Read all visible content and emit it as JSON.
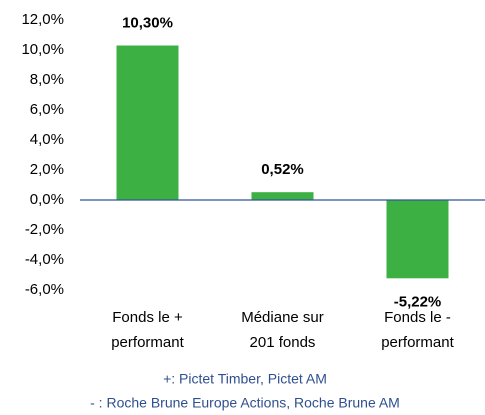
{
  "chart_data": {
    "type": "bar",
    "categories": [
      [
        "Fonds le +",
        "performant"
      ],
      [
        "Médiane sur",
        "201 fonds"
      ],
      [
        "Fonds le -",
        "performant"
      ]
    ],
    "values": [
      10.3,
      0.52,
      -5.22
    ],
    "value_labels": [
      "10,30%",
      "0,52%",
      "-5,22%"
    ],
    "color": "#3cb043",
    "ylim": [
      -6,
      12
    ],
    "yticks": [
      {
        "value": -6,
        "label": "-6,0%"
      },
      {
        "value": -4,
        "label": "-4,0%"
      },
      {
        "value": -2,
        "label": "-2,0%"
      },
      {
        "value": 0,
        "label": "0,0%"
      },
      {
        "value": 2,
        "label": "2,0%"
      },
      {
        "value": 4,
        "label": "4,0%"
      },
      {
        "value": 6,
        "label": "6,0%"
      },
      {
        "value": 8,
        "label": "8,0%"
      },
      {
        "value": 10,
        "label": "10,0%"
      },
      {
        "value": 12,
        "label": "12,0%"
      }
    ],
    "notes": [
      "+:  Pictet Timber, Pictet AM",
      "- :  Roche Brune Europe Actions, Roche Brune AM"
    ]
  }
}
